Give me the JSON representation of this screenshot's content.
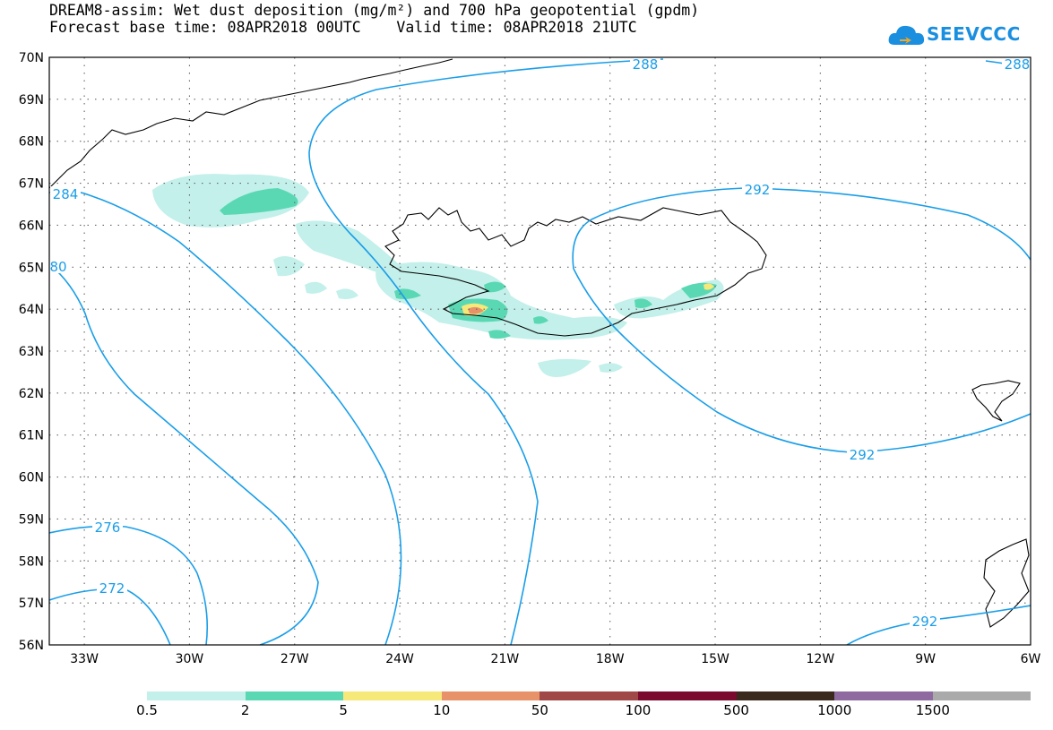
{
  "header": {
    "title_line1": "DREAM8-assim: Wet dust deposition (mg/m²) and 700 hPa geopotential (gpdm)",
    "title_line2": "Forecast base time: 08APR2018 00UTC    Valid time: 08APR2018 21UTC",
    "logo_text": "SEEVCCC",
    "logo_color": "#1a8fe0"
  },
  "map": {
    "lon_range": [
      -34,
      -6
    ],
    "lat_range": [
      56,
      70
    ],
    "lon_ticks": [
      "33W",
      "30W",
      "27W",
      "24W",
      "21W",
      "18W",
      "15W",
      "12W",
      "9W",
      "6W"
    ],
    "lat_ticks": [
      "56N",
      "57N",
      "58N",
      "59N",
      "60N",
      "61N",
      "62N",
      "63N",
      "64N",
      "65N",
      "66N",
      "67N",
      "68N",
      "69N",
      "70N"
    ],
    "contour_color": "#1a9ee8",
    "contour_labels": [
      "288",
      "288",
      "292",
      "292",
      "292",
      "284",
      "80",
      "276",
      "272"
    ]
  },
  "legend": {
    "labels": [
      "0.5",
      "2",
      "5",
      "10",
      "50",
      "100",
      "500",
      "1000",
      "1500"
    ],
    "colors": [
      "#c3f0ea",
      "#5ad8b4",
      "#f6e97a",
      "#e8926a",
      "#a04848",
      "#7a0a2e",
      "#3a2a1e",
      "#8e6aa0",
      "#aaaaaa"
    ]
  }
}
